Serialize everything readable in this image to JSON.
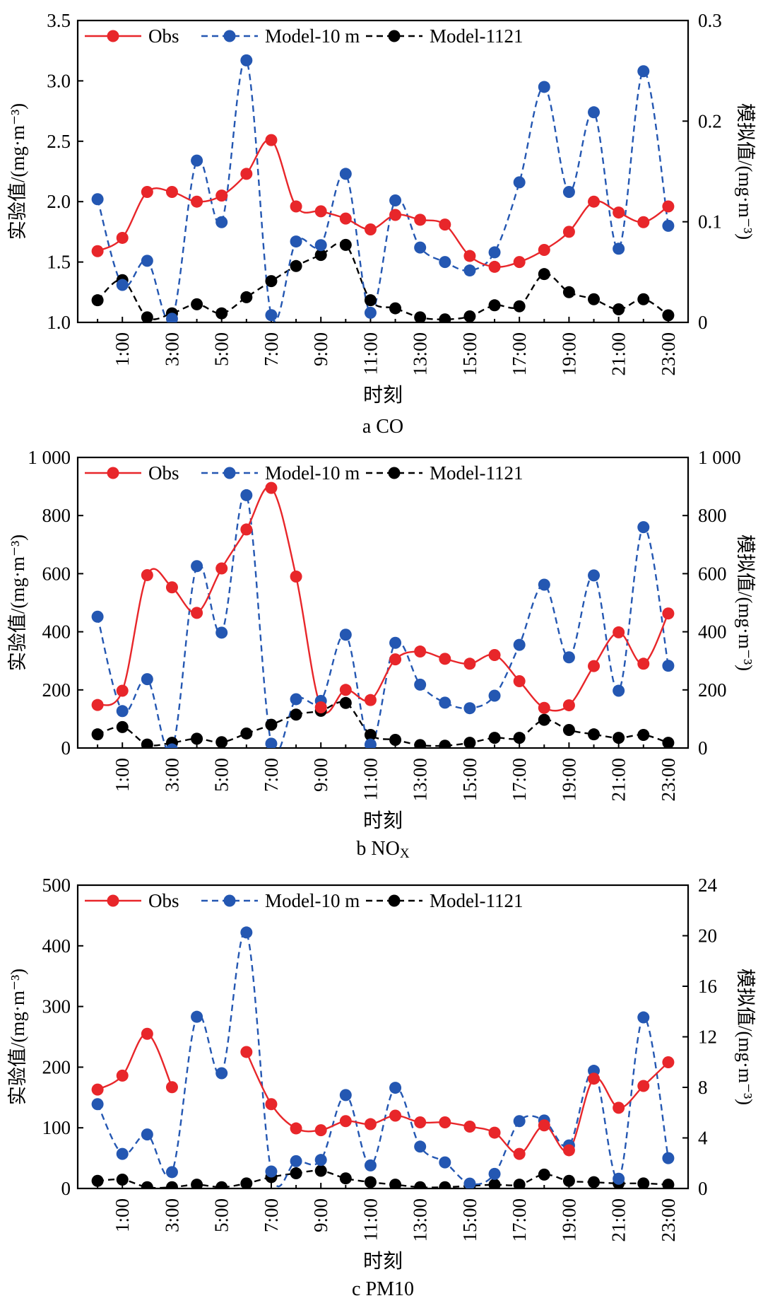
{
  "colors": {
    "obs": "#e8262a",
    "model10": "#2457b2",
    "model1121": "#000000",
    "axis": "#000000"
  },
  "legend_labels": [
    "Obs",
    "Model-10 m",
    "Model-1121"
  ],
  "shared": {
    "xlabel": "时刻",
    "xticks": [
      "1:00",
      "3:00",
      "5:00",
      "7:00",
      "9:00",
      "11:00",
      "13:00",
      "15:00",
      "17:00",
      "19:00",
      "21:00",
      "23:00"
    ]
  },
  "chart_data": [
    {
      "type": "line",
      "id": "co",
      "caption": "a CO",
      "xlabel": "时刻",
      "ylabel_left": "实验值/(mg·m⁻³)",
      "ylabel_right": "模拟值/(mg·m⁻³)",
      "xlim": [
        -0.8,
        23.8
      ],
      "ylim_left": [
        1.0,
        3.5
      ],
      "ylim_right": [
        0,
        0.3
      ],
      "yticks_left": [
        "1.0",
        "1.5",
        "2.0",
        "2.5",
        "3.0",
        "3.5"
      ],
      "yticks_right": [
        "0",
        "0.1",
        "0.2",
        "0.3"
      ],
      "x": [
        0,
        1,
        2,
        3,
        4,
        5,
        6,
        7,
        8,
        9,
        10,
        11,
        12,
        13,
        14,
        15,
        16,
        17,
        18,
        19,
        20,
        21,
        22,
        23
      ],
      "series": [
        {
          "name": "Obs",
          "axis": "left",
          "style": "solid",
          "gaps": false,
          "values": [
            1.59,
            1.7,
            2.08,
            2.08,
            2.0,
            2.05,
            2.23,
            2.51,
            1.96,
            1.92,
            1.86,
            1.77,
            1.89,
            1.85,
            1.81,
            1.55,
            1.46,
            1.5,
            1.6,
            1.75,
            2.0,
            1.91,
            1.83,
            1.96
          ]
        },
        {
          "name": "Model-10 m",
          "axis": "left",
          "style": "dashed",
          "gaps": false,
          "values": [
            2.02,
            1.31,
            1.51,
            1.03,
            2.34,
            1.83,
            3.17,
            1.06,
            1.67,
            1.64,
            2.23,
            1.08,
            2.01,
            1.62,
            1.5,
            1.43,
            1.58,
            2.16,
            2.95,
            2.08,
            2.74,
            1.61,
            3.08,
            1.8
          ]
        },
        {
          "name": "Model-1121",
          "axis": "right",
          "style": "dashed",
          "gaps": false,
          "values": [
            0.022,
            0.042,
            0.005,
            0.009,
            0.018,
            0.009,
            0.025,
            0.041,
            0.056,
            0.067,
            0.077,
            0.022,
            0.014,
            0.005,
            0.003,
            0.006,
            0.017,
            0.016,
            0.048,
            0.03,
            0.023,
            0.013,
            0.023,
            0.007
          ]
        }
      ]
    },
    {
      "type": "line",
      "id": "nox",
      "caption": "b NO",
      "caption_sub": "X",
      "xlabel": "时刻",
      "ylabel_left": "实验值/(mg·m⁻³)",
      "ylabel_right": "模拟值/(mg·m⁻³)",
      "xlim": [
        -0.8,
        23.8
      ],
      "ylim_left": [
        0,
        1000
      ],
      "ylim_right": [
        0,
        1000
      ],
      "yticks_left": [
        "0",
        "200",
        "400",
        "600",
        "800",
        "1 000"
      ],
      "yticks_right": [
        "0",
        "200",
        "400",
        "600",
        "800",
        "1 000"
      ],
      "x": [
        0,
        1,
        2,
        3,
        4,
        5,
        6,
        7,
        8,
        9,
        10,
        11,
        12,
        13,
        14,
        15,
        16,
        17,
        18,
        19,
        20,
        21,
        22,
        23
      ],
      "series": [
        {
          "name": "Obs",
          "axis": "left",
          "style": "solid",
          "gaps": false,
          "values": [
            148,
            197,
            595,
            553,
            465,
            618,
            752,
            895,
            590,
            140,
            200,
            165,
            305,
            332,
            307,
            290,
            320,
            230,
            138,
            147,
            282,
            398,
            290,
            463
          ]
        },
        {
          "name": "Model-10 m",
          "axis": "left",
          "style": "dashed",
          "gaps": false,
          "values": [
            452,
            127,
            237,
            -5,
            626,
            397,
            870,
            15,
            168,
            162,
            390,
            12,
            362,
            218,
            156,
            137,
            180,
            355,
            562,
            312,
            594,
            197,
            760,
            283
          ]
        },
        {
          "name": "Model-1121",
          "axis": "right",
          "style": "dashed",
          "gaps": false,
          "values": [
            47,
            72,
            12,
            18,
            32,
            20,
            50,
            80,
            115,
            128,
            155,
            45,
            28,
            10,
            8,
            18,
            35,
            35,
            97,
            62,
            47,
            35,
            45,
            18
          ]
        }
      ]
    },
    {
      "type": "line",
      "id": "pm10",
      "caption": "c PM10",
      "xlabel": "时刻",
      "ylabel_left": "实验值/(mg·m⁻³)",
      "ylabel_right": "模拟值/(mg·m⁻³)",
      "xlim": [
        -0.8,
        23.8
      ],
      "ylim_left": [
        0,
        500
      ],
      "ylim_right": [
        0,
        24
      ],
      "yticks_left": [
        "0",
        "100",
        "200",
        "300",
        "400",
        "500"
      ],
      "yticks_right": [
        "0",
        "4",
        "8",
        "12",
        "16",
        "20",
        "24"
      ],
      "x": [
        0,
        1,
        2,
        3,
        4,
        5,
        6,
        7,
        8,
        9,
        10,
        11,
        12,
        13,
        14,
        15,
        16,
        17,
        18,
        19,
        20,
        21,
        22,
        23
      ],
      "series": [
        {
          "name": "Obs",
          "axis": "left",
          "style": "solid",
          "gaps": true,
          "values": [
            163,
            186,
            255,
            167,
            null,
            null,
            225,
            139,
            99,
            96,
            111,
            106,
            120,
            109,
            109,
            102,
            92,
            57,
            104,
            63,
            181,
            133,
            169,
            208
          ]
        },
        {
          "name": "Model-10 m",
          "axis": "left",
          "style": "dashed",
          "gaps": false,
          "values": [
            139,
            57,
            89,
            27,
            283,
            190,
            422,
            28,
            45,
            47,
            154,
            38,
            166,
            69,
            43,
            8,
            24,
            111,
            112,
            71,
            194,
            16,
            282,
            50
          ]
        },
        {
          "name": "Model-1121",
          "axis": "right",
          "style": "dashed",
          "gaps": false,
          "values": [
            0.6,
            0.7,
            0.1,
            0.1,
            0.3,
            0.1,
            0.4,
            0.9,
            1.2,
            1.4,
            0.8,
            0.5,
            0.3,
            0.1,
            0.1,
            0.2,
            0.3,
            0.3,
            1.1,
            0.6,
            0.5,
            0.4,
            0.4,
            0.3
          ]
        }
      ]
    }
  ]
}
